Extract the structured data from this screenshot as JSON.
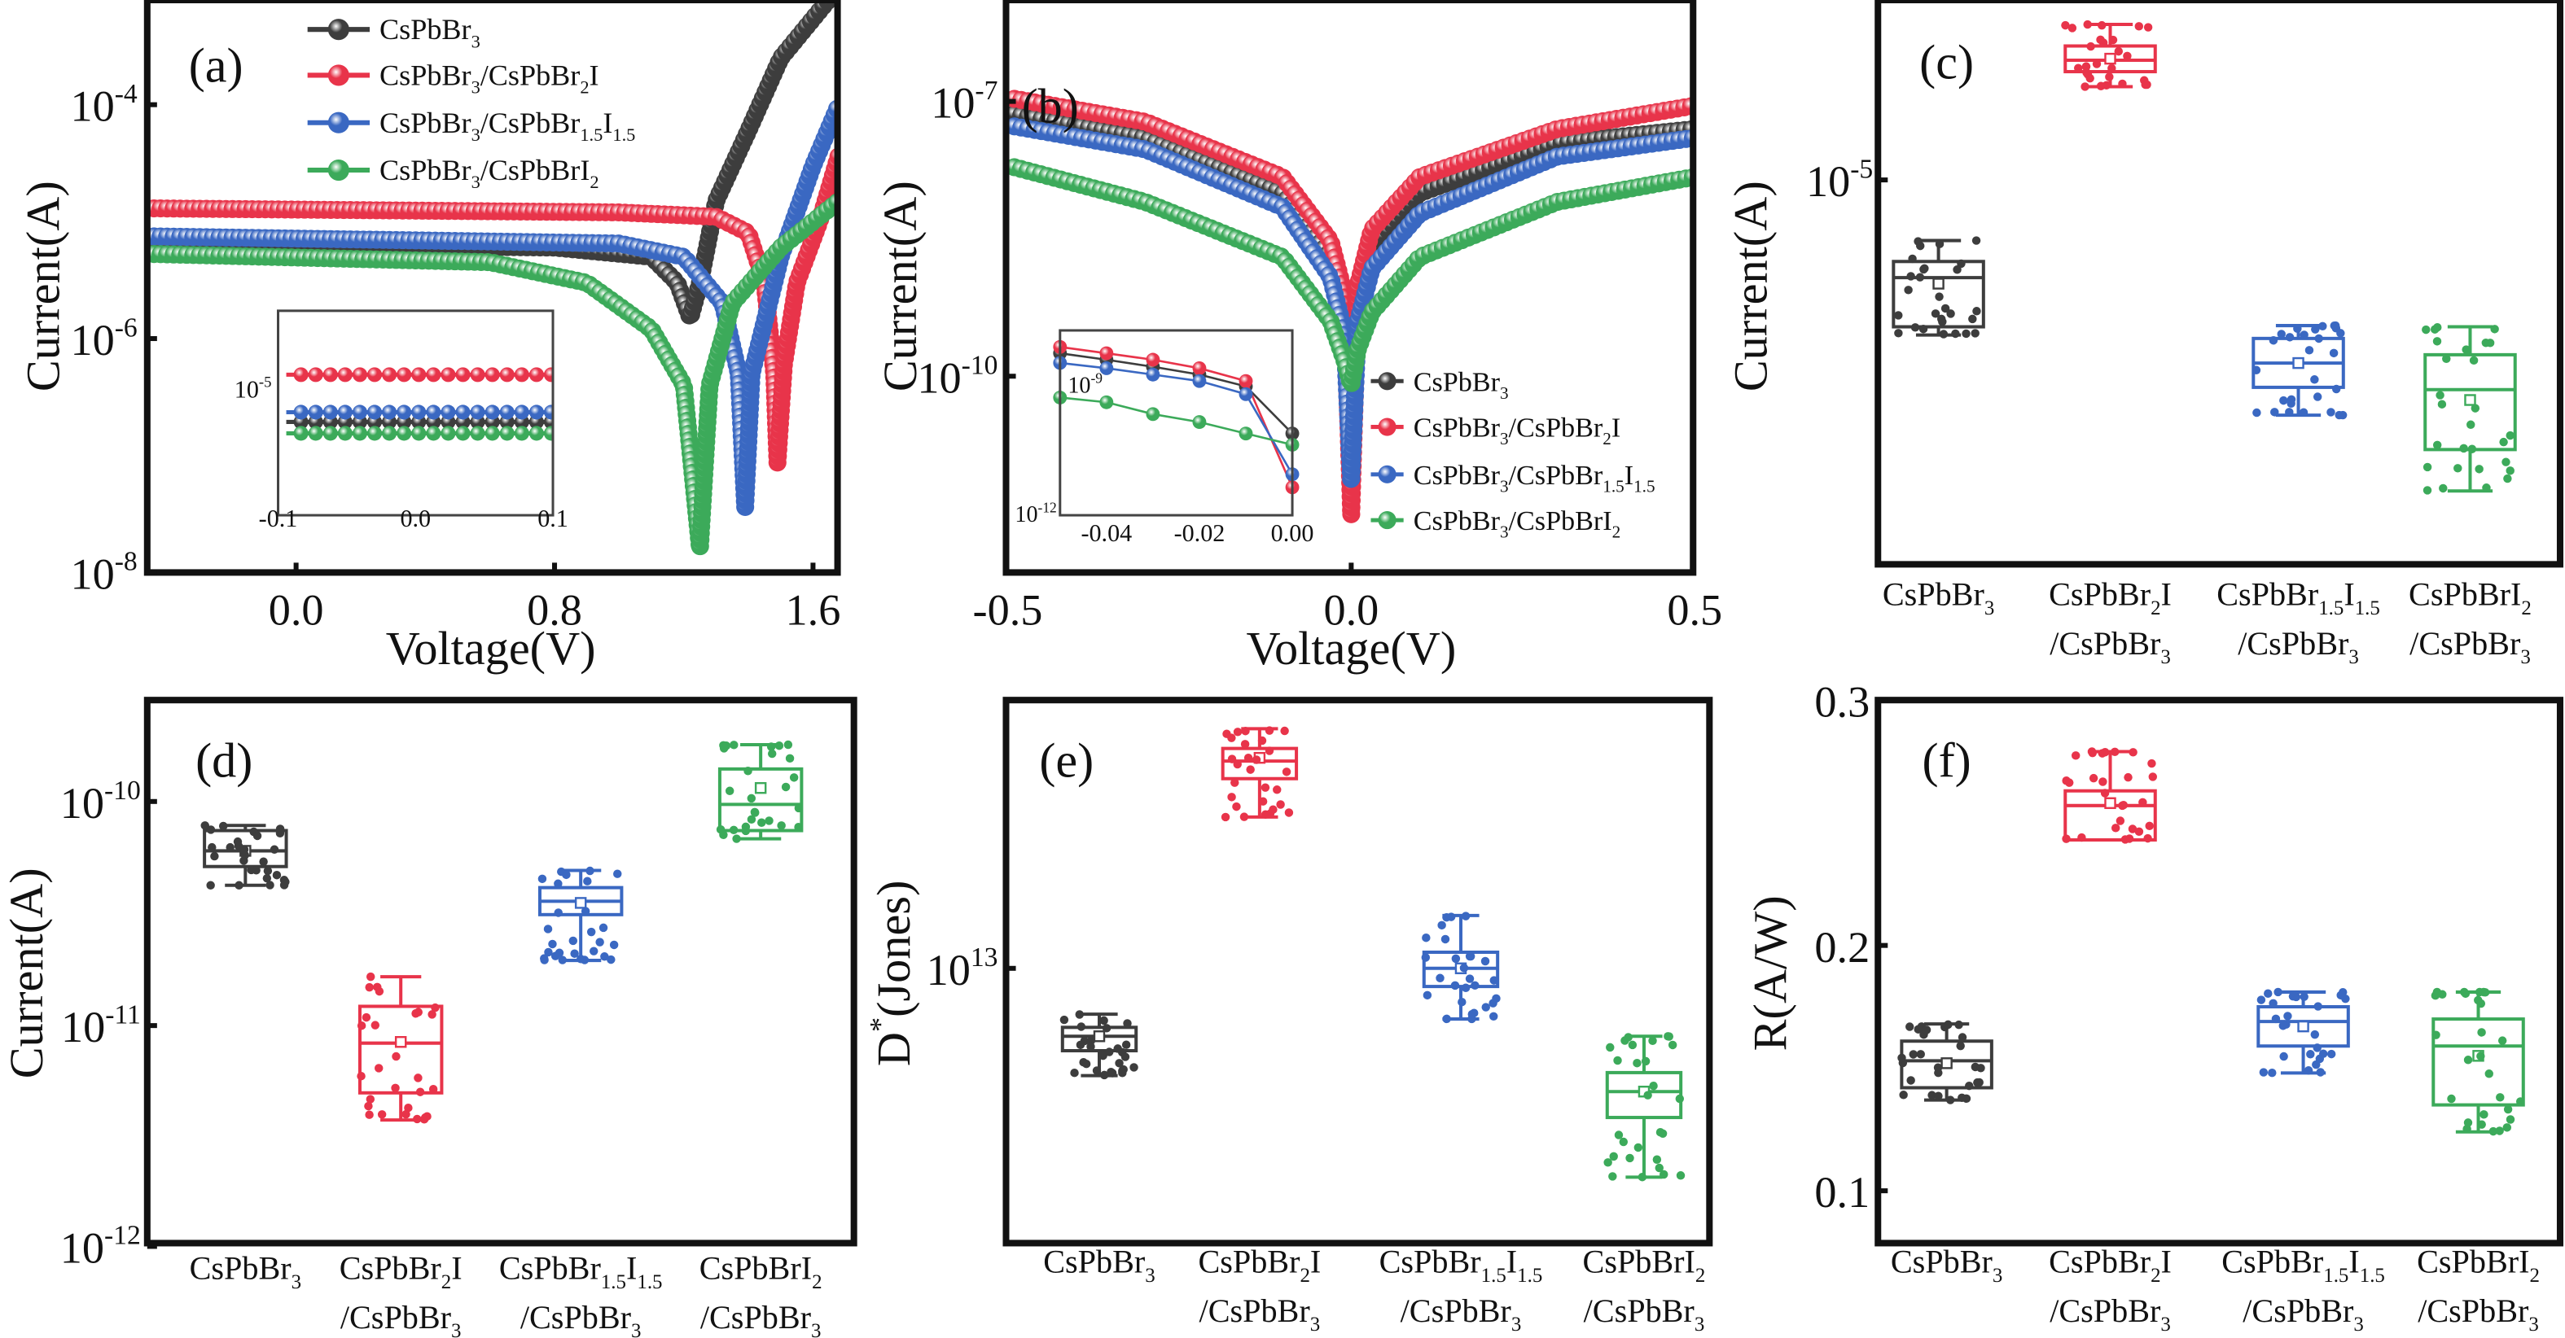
{
  "chart_data": [
    {
      "type": "line",
      "panel_label": "(a)",
      "xlabel": "Voltage(V)",
      "ylabel": "Current(A)",
      "y_scale": "log",
      "x_range": [
        -0.46,
        1.68
      ],
      "y_range": [
        1e-08,
        0.0008
      ],
      "xticks": [
        "0.0",
        "0.8",
        "1.6"
      ],
      "yticks": [
        "10^{-4}",
        "10^{-6}",
        "10^{-8}"
      ],
      "legend_placement": "top",
      "series": [
        {
          "name": "CsPbBr_{3}",
          "color": "#3d3d3d",
          "points": [
            [
              -0.46,
              6.5e-06
            ],
            [
              0.8,
              6e-06
            ],
            [
              1.1,
              5e-06
            ],
            [
              1.18,
              3e-06
            ],
            [
              1.22,
              1.5e-06
            ],
            [
              1.25,
              3e-06
            ],
            [
              1.3,
              1.5e-05
            ],
            [
              1.4,
              6e-05
            ],
            [
              1.5,
              0.00025
            ],
            [
              1.65,
              0.0008
            ]
          ]
        },
        {
          "name": "CsPbBr_{3}/CsPbBr_{2}I",
          "color": "#e8344a",
          "points": [
            [
              -0.46,
              1.3e-05
            ],
            [
              1.0,
              1.2e-05
            ],
            [
              1.3,
              1.1e-05
            ],
            [
              1.4,
              8e-06
            ],
            [
              1.45,
              3e-06
            ],
            [
              1.48,
              5e-07
            ],
            [
              1.49,
              8.7e-08
            ],
            [
              1.51,
              6e-07
            ],
            [
              1.55,
              3e-06
            ],
            [
              1.62,
              1e-05
            ],
            [
              1.68,
              3.7e-05
            ]
          ]
        },
        {
          "name": "CsPbBr_{3}/CsPbBr_{1.5}I_{1.5}",
          "color": "#3a68c2",
          "points": [
            [
              -0.46,
              7.5e-06
            ],
            [
              1.0,
              6.5e-06
            ],
            [
              1.2,
              5e-06
            ],
            [
              1.32,
              2e-06
            ],
            [
              1.37,
              5e-07
            ],
            [
              1.39,
              3.6e-08
            ],
            [
              1.41,
              5e-07
            ],
            [
              1.5,
              5e-06
            ],
            [
              1.6,
              3e-05
            ],
            [
              1.68,
              0.0001
            ]
          ]
        },
        {
          "name": "CsPbBr_{3}/CsPbBrI_{2}",
          "color": "#3caa5a",
          "points": [
            [
              -0.46,
              5.3e-06
            ],
            [
              0.6,
              4.5e-06
            ],
            [
              0.9,
              3e-06
            ],
            [
              1.1,
              1.2e-06
            ],
            [
              1.2,
              4e-07
            ],
            [
              1.25,
              1.6e-08
            ],
            [
              1.28,
              4e-07
            ],
            [
              1.35,
              2e-06
            ],
            [
              1.5,
              6e-06
            ],
            [
              1.68,
              1.5e-05
            ]
          ]
        }
      ],
      "inset": {
        "x_range": [
          -0.1,
          0.1
        ],
        "xticks": [
          "-0.1",
          "0.0",
          "0.1"
        ],
        "yticks": [
          "10^{-5}"
        ],
        "values": [
          6.5e-06,
          1.3e-05,
          7.5e-06,
          5.5e-06
        ]
      }
    },
    {
      "type": "line",
      "panel_label": "(b)",
      "xlabel": "Voltage(V)",
      "ylabel": "Current(A)",
      "y_scale": "log",
      "x_range": [
        -0.5,
        0.5
      ],
      "xticks": [
        "-0.5",
        "0.0",
        "0.5"
      ],
      "yticks": [
        "10^{-7}",
        "10^{-10}"
      ],
      "legend_placement": "center-right",
      "series": [
        {
          "name": "CsPbBr_{3}",
          "color": "#3d3d3d",
          "points": [
            [
              -0.5,
              7.5e-08
            ],
            [
              -0.3,
              4e-08
            ],
            [
              -0.1,
              1e-08
            ],
            [
              -0.03,
              2e-09
            ],
            [
              -0.01,
              5e-10
            ],
            [
              0,
              1.5e-10
            ],
            [
              0.01,
              7e-10
            ],
            [
              0.03,
              2.5e-09
            ],
            [
              0.1,
              1e-08
            ],
            [
              0.3,
              3.5e-08
            ],
            [
              0.5,
              5e-08
            ]
          ]
        },
        {
          "name": "CsPbBr_{3}/CsPbBr_{2}I",
          "color": "#e8344a",
          "points": [
            [
              -0.5,
              1.1e-07
            ],
            [
              -0.3,
              6e-08
            ],
            [
              -0.1,
              1.5e-08
            ],
            [
              -0.03,
              3e-09
            ],
            [
              -0.01,
              8e-10
            ],
            [
              0,
              3e-12
            ],
            [
              0.01,
              1e-09
            ],
            [
              0.03,
              4e-09
            ],
            [
              0.1,
              1.5e-08
            ],
            [
              0.3,
              5e-08
            ],
            [
              0.5,
              9e-08
            ]
          ]
        },
        {
          "name": "CsPbBr_{3}/CsPbBr_{1.5}I_{1.5}",
          "color": "#3a68c2",
          "points": [
            [
              -0.5,
              5.5e-08
            ],
            [
              -0.3,
              3e-08
            ],
            [
              -0.1,
              7e-09
            ],
            [
              -0.03,
              1.2e-09
            ],
            [
              -0.01,
              3e-10
            ],
            [
              0,
              7e-12
            ],
            [
              0.01,
              4e-10
            ],
            [
              0.03,
              1.5e-09
            ],
            [
              0.1,
              6e-09
            ],
            [
              0.3,
              2.5e-08
            ],
            [
              0.5,
              4e-08
            ]
          ]
        },
        {
          "name": "CsPbBr_{3}/CsPbBrI_{2}",
          "color": "#3caa5a",
          "points": [
            [
              -0.5,
              2e-08
            ],
            [
              -0.3,
              8e-09
            ],
            [
              -0.1,
              2e-09
            ],
            [
              -0.03,
              4e-10
            ],
            [
              -0.01,
              1.5e-10
            ],
            [
              0,
              8e-11
            ],
            [
              0.01,
              2e-10
            ],
            [
              0.03,
              5e-10
            ],
            [
              0.1,
              2e-09
            ],
            [
              0.3,
              8e-09
            ],
            [
              0.5,
              1.5e-08
            ]
          ]
        }
      ],
      "inset": {
        "x_range": [
          -0.05,
          0
        ],
        "xticks": [
          "-0.04",
          "-0.02",
          "0.00"
        ],
        "yticks": [
          "10^{-9}",
          "10^{-12}"
        ],
        "x": [
          -0.05,
          -0.04,
          -0.03,
          -0.02,
          -0.01,
          0
        ],
        "values": [
          [
            5.4e-09,
            3.8e-09,
            2.6e-09,
            1.7e-09,
            9e-10,
            7e-11
          ],
          [
            7.6e-09,
            5.4e-09,
            3.8e-09,
            2.4e-09,
            1.2e-09,
            3.8e-12
          ],
          [
            3.2e-09,
            2.4e-09,
            1.7e-09,
            1.2e-09,
            5.9e-10,
            7.7e-12
          ],
          [
            4.9e-10,
            3.8e-10,
            2e-10,
            1.3e-10,
            7e-11,
            3.8e-11
          ]
        ]
      }
    },
    {
      "type": "box",
      "panel_label": "(c)",
      "ylabel": "Current(A)",
      "y_scale": "log",
      "yticks": [
        "10^{-5}"
      ],
      "categories": [
        [
          "CsPbBr_{3}",
          ""
        ],
        [
          "CsPbBr_{2}I",
          "/CsPbBr_{3}"
        ],
        [
          "CsPbBr_{1.5}I_{1.5}",
          "/CsPbBr_{3}"
        ],
        [
          "CsPbBrI_{2}",
          "/CsPbBr_{3}"
        ]
      ],
      "colors": [
        "#3d3d3d",
        "#e8344a",
        "#3a68c2",
        "#3caa5a"
      ],
      "boxes": [
        {
          "min": 3.87e-06,
          "q1": 4.07e-06,
          "median": 5.5e-06,
          "q3": 6.07e-06,
          "max": 6.9e-06,
          "mean": 5.3e-06
        },
        {
          "min": 1.77e-05,
          "q1": 1.94e-05,
          "median": 2.08e-05,
          "q3": 2.27e-05,
          "max": 2.59e-05,
          "mean": 2.1e-05
        },
        {
          "min": 2.37e-06,
          "q1": 2.81e-06,
          "median": 3.26e-06,
          "q3": 3.79e-06,
          "max": 4.1e-06,
          "mean": 3.26e-06
        },
        {
          "min": 1.49e-06,
          "q1": 1.92e-06,
          "median": 2.77e-06,
          "q3": 3.43e-06,
          "max": 4.07e-06,
          "mean": 2.6e-06
        }
      ]
    },
    {
      "type": "box",
      "panel_label": "(d)",
      "ylabel": "Current(A)",
      "y_scale": "log",
      "y_range": [
        1e-12,
        3e-10
      ],
      "yticks": [
        "10^{-10}",
        "10^{-11}",
        "10^{-12}"
      ],
      "categories": [
        [
          "CsPbBr_{3}",
          ""
        ],
        [
          "CsPbBr_{2}I",
          "/CsPbBr_{3}"
        ],
        [
          "CsPbBr_{1.5}I_{1.5}",
          "/CsPbBr_{3}"
        ],
        [
          "CsPbBrI_{2}",
          "/CsPbBr_{3}"
        ]
      ],
      "colors": [
        "#3d3d3d",
        "#e8344a",
        "#3a68c2",
        "#3caa5a"
      ],
      "boxes": [
        {
          "min": 4.2e-11,
          "q1": 5.1e-11,
          "median": 6e-11,
          "q3": 7.4e-11,
          "max": 7.8e-11,
          "mean": 6e-11
        },
        {
          "min": 3.7e-12,
          "q1": 4.9e-12,
          "median": 8.2e-12,
          "q3": 1.2e-11,
          "max": 1.63e-11,
          "mean": 8.3e-12
        },
        {
          "min": 1.93e-11,
          "q1": 3.1e-11,
          "median": 3.56e-11,
          "q3": 4.1e-11,
          "max": 4.9e-11,
          "mean": 3.5e-11
        },
        {
          "min": 6.8e-11,
          "q1": 7.4e-11,
          "median": 9.7e-11,
          "q3": 1.4e-10,
          "max": 1.8e-10,
          "mean": 1.15e-10
        }
      ]
    },
    {
      "type": "box",
      "panel_label": "(e)",
      "ylabel": "D^{*}(Jones)",
      "y_scale": "log",
      "yticks": [
        "10^{13}"
      ],
      "categories": [
        [
          "CsPbBr_{3}",
          ""
        ],
        [
          "CsPbBr_{2}I",
          "/CsPbBr_{3}"
        ],
        [
          "CsPbBr_{1.5}I_{1.5}",
          "/CsPbBr_{3}"
        ],
        [
          "CsPbBrI_{2}",
          "/CsPbBr_{3}"
        ]
      ],
      "colors": [
        "#3d3d3d",
        "#e8344a",
        "#3a68c2",
        "#3caa5a"
      ],
      "boxes": [
        {
          "min": 4700000000000.0,
          "q1": 5600000000000.0,
          "median": 6200000000000.0,
          "q3": 6600000000000.0,
          "max": 7240000000000.0,
          "mean": 6200000000000.0
        },
        {
          "min": 29000000000000.0,
          "q1": 38000000000000.0,
          "median": 43000000000000.0,
          "q3": 47000000000000.0,
          "max": 54000000000000.0,
          "mean": 44000000000000.0
        },
        {
          "min": 7000000000000.0,
          "q1": 8800000000000.0,
          "median": 10000000000000.0,
          "q3": 11200000000000.0,
          "max": 14500000000000.0,
          "mean": 10000000000000.0
        },
        {
          "min": 2300000000000.0,
          "q1": 3500000000000.0,
          "median": 4200000000000.0,
          "q3": 4800000000000.0,
          "max": 6200000000000.0,
          "mean": 4200000000000.0
        }
      ]
    },
    {
      "type": "box",
      "panel_label": "(f)",
      "ylabel": "R(A/W)",
      "y_scale": "linear",
      "y_range": [
        0.08,
        0.3
      ],
      "yticks": [
        "0.3",
        "0.2",
        "0.1"
      ],
      "categories": [
        [
          "CsPbBr_{3}",
          ""
        ],
        [
          "CsPbBr_{2}I",
          "/CsPbBr_{3}"
        ],
        [
          "CsPbBr_{1.5}I_{1.5}",
          "/CsPbBr_{3}"
        ],
        [
          "CsPbBrI_{2}",
          "/CsPbBr_{3}"
        ]
      ],
      "colors": [
        "#3d3d3d",
        "#e8344a",
        "#3a68c2",
        "#3caa5a"
      ],
      "boxes": [
        {
          "min": 0.137,
          "q1": 0.142,
          "median": 0.153,
          "q3": 0.161,
          "max": 0.168,
          "mean": 0.152
        },
        {
          "min": 0.243,
          "q1": 0.243,
          "median": 0.257,
          "q3": 0.263,
          "max": 0.279,
          "mean": 0.258
        },
        {
          "min": 0.148,
          "q1": 0.159,
          "median": 0.169,
          "q3": 0.175,
          "max": 0.181,
          "mean": 0.167
        },
        {
          "min": 0.124,
          "q1": 0.135,
          "median": 0.159,
          "q3": 0.17,
          "max": 0.181,
          "mean": 0.155
        }
      ]
    }
  ]
}
